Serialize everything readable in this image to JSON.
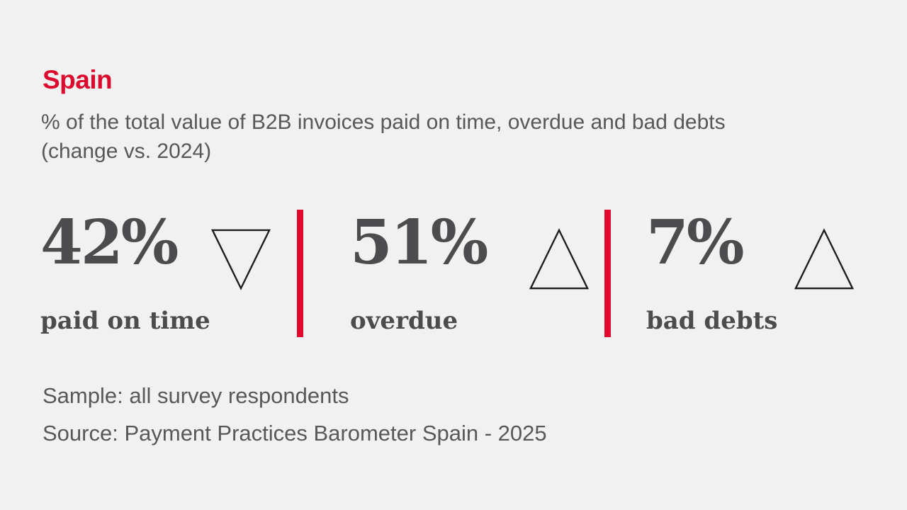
{
  "colors": {
    "background": "#f1f1f2",
    "accent_red": "#df0a2e",
    "heading_red": "#dc0a2e",
    "text_gray": "#58585a",
    "stat_gray": "#4c4c4e",
    "triangle_stroke": "#1d1d1b"
  },
  "header": {
    "title": "Spain",
    "subtitle_line1": "% of the total value of B2B invoices paid on time, overdue and bad debts",
    "subtitle_line2": "(change vs. 2024)"
  },
  "stats": [
    {
      "value": "42%",
      "label": "paid on time",
      "trend": "down"
    },
    {
      "value": "51%",
      "label": "overdue",
      "trend": "up"
    },
    {
      "value": "7%",
      "label": "bad debts",
      "trend": "up"
    }
  ],
  "footer": {
    "sample": "Sample: all survey respondents",
    "source": "Source: Payment Practices Barometer Spain - 2025"
  },
  "chart_data": {
    "type": "table",
    "title": "Spain",
    "subtitle": "% of the total value of B2B invoices paid on time, overdue and bad debts (change vs. 2024)",
    "categories": [
      "paid on time",
      "overdue",
      "bad debts"
    ],
    "values": [
      42,
      51,
      7
    ],
    "unit": "%",
    "change_vs_2024_direction": [
      "down",
      "up",
      "up"
    ],
    "sample": "Sample: all survey respondents",
    "source": "Source: Payment Practices Barometer Spain - 2025"
  }
}
